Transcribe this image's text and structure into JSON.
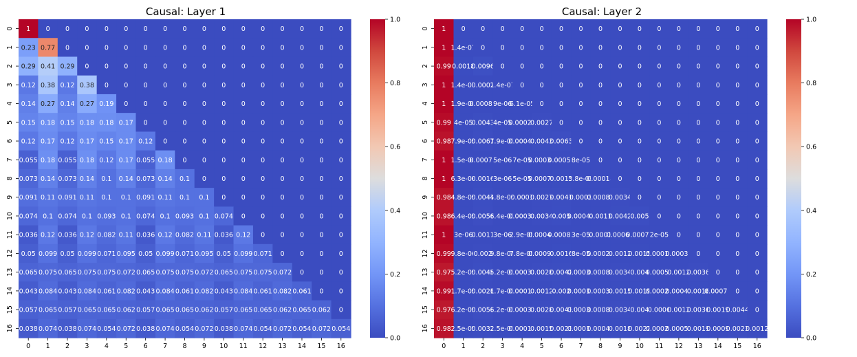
{
  "chart_data": [
    {
      "type": "heatmap",
      "title": "Causal: Layer 1",
      "x_ticks": [
        "0",
        "1",
        "2",
        "3",
        "4",
        "5",
        "6",
        "7",
        "8",
        "9",
        "10",
        "11",
        "12",
        "13",
        "14",
        "15",
        "16"
      ],
      "y_ticks": [
        "0",
        "1",
        "2",
        "3",
        "4",
        "5",
        "6",
        "7",
        "8",
        "9",
        "10",
        "11",
        "12",
        "13",
        "14",
        "15",
        "16"
      ],
      "colormap": "coolwarm",
      "vmin": 0.0,
      "vmax": 1.0,
      "colorbar_ticks": [
        "0.0",
        "0.2",
        "0.4",
        "0.6",
        "0.8",
        "1.0"
      ],
      "annotations": true,
      "values": [
        [
          "1",
          "0",
          "0",
          "0",
          "0",
          "0",
          "0",
          "0",
          "0",
          "0",
          "0",
          "0",
          "0",
          "0",
          "0",
          "0",
          "0"
        ],
        [
          "0.23",
          "0.77",
          "0",
          "0",
          "0",
          "0",
          "0",
          "0",
          "0",
          "0",
          "0",
          "0",
          "0",
          "0",
          "0",
          "0",
          "0"
        ],
        [
          "0.29",
          "0.41",
          "0.29",
          "0",
          "0",
          "0",
          "0",
          "0",
          "0",
          "0",
          "0",
          "0",
          "0",
          "0",
          "0",
          "0",
          "0"
        ],
        [
          "0.12",
          "0.38",
          "0.12",
          "0.38",
          "0",
          "0",
          "0",
          "0",
          "0",
          "0",
          "0",
          "0",
          "0",
          "0",
          "0",
          "0",
          "0"
        ],
        [
          "0.14",
          "0.27",
          "0.14",
          "0.27",
          "0.19",
          "0",
          "0",
          "0",
          "0",
          "0",
          "0",
          "0",
          "0",
          "0",
          "0",
          "0",
          "0"
        ],
        [
          "0.15",
          "0.18",
          "0.15",
          "0.18",
          "0.18",
          "0.17",
          "0",
          "0",
          "0",
          "0",
          "0",
          "0",
          "0",
          "0",
          "0",
          "0",
          "0"
        ],
        [
          "0.12",
          "0.17",
          "0.12",
          "0.17",
          "0.15",
          "0.17",
          "0.12",
          "0",
          "0",
          "0",
          "0",
          "0",
          "0",
          "0",
          "0",
          "0",
          "0"
        ],
        [
          "0.055",
          "0.18",
          "0.055",
          "0.18",
          "0.12",
          "0.17",
          "0.055",
          "0.18",
          "0",
          "0",
          "0",
          "0",
          "0",
          "0",
          "0",
          "0",
          "0"
        ],
        [
          "0.073",
          "0.14",
          "0.073",
          "0.14",
          "0.1",
          "0.14",
          "0.073",
          "0.14",
          "0.1",
          "0",
          "0",
          "0",
          "0",
          "0",
          "0",
          "0",
          "0"
        ],
        [
          "0.091",
          "0.11",
          "0.091",
          "0.11",
          "0.1",
          "0.1",
          "0.091",
          "0.11",
          "0.1",
          "0.1",
          "0",
          "0",
          "0",
          "0",
          "0",
          "0",
          "0"
        ],
        [
          "0.074",
          "0.1",
          "0.074",
          "0.1",
          "0.093",
          "0.1",
          "0.074",
          "0.1",
          "0.093",
          "0.1",
          "0.074",
          "0",
          "0",
          "0",
          "0",
          "0",
          "0"
        ],
        [
          "0.036",
          "0.12",
          "0.036",
          "0.12",
          "0.082",
          "0.11",
          "0.036",
          "0.12",
          "0.082",
          "0.11",
          "0.036",
          "0.12",
          "0",
          "0",
          "0",
          "0",
          "0"
        ],
        [
          "0.05",
          "0.099",
          "0.05",
          "0.099",
          "0.071",
          "0.095",
          "0.05",
          "0.099",
          "0.071",
          "0.095",
          "0.05",
          "0.099",
          "0.071",
          "0",
          "0",
          "0",
          "0"
        ],
        [
          "0.065",
          "0.075",
          "0.065",
          "0.075",
          "0.075",
          "0.072",
          "0.065",
          "0.075",
          "0.075",
          "0.072",
          "0.065",
          "0.075",
          "0.075",
          "0.072",
          "0",
          "0",
          "0"
        ],
        [
          "0.043",
          "0.084",
          "0.043",
          "0.084",
          "0.061",
          "0.082",
          "0.043",
          "0.084",
          "0.061",
          "0.082",
          "0.043",
          "0.084",
          "0.061",
          "0.082",
          "0.061",
          "0",
          "0"
        ],
        [
          "0.057",
          "0.065",
          "0.057",
          "0.065",
          "0.065",
          "0.062",
          "0.057",
          "0.065",
          "0.065",
          "0.062",
          "0.057",
          "0.065",
          "0.065",
          "0.062",
          "0.065",
          "0.062",
          "0"
        ],
        [
          "0.038",
          "0.074",
          "0.038",
          "0.074",
          "0.054",
          "0.072",
          "0.038",
          "0.074",
          "0.054",
          "0.072",
          "0.038",
          "0.074",
          "0.054",
          "0.072",
          "0.054",
          "0.072",
          "0.054"
        ]
      ]
    },
    {
      "type": "heatmap",
      "title": "Causal: Layer 2",
      "x_ticks": [
        "0",
        "1",
        "2",
        "3",
        "4",
        "5",
        "6",
        "7",
        "8",
        "9",
        "10",
        "11",
        "12",
        "13",
        "14",
        "15",
        "16"
      ],
      "y_ticks": [
        "0",
        "1",
        "2",
        "3",
        "4",
        "5",
        "6",
        "7",
        "8",
        "9",
        "10",
        "11",
        "12",
        "13",
        "14",
        "15",
        "16"
      ],
      "colormap": "coolwarm",
      "vmin": 0.0,
      "vmax": 1.0,
      "colorbar_ticks": [
        "0.0",
        "0.2",
        "0.4",
        "0.6",
        "0.8",
        "1.0"
      ],
      "annotations": true,
      "values": [
        [
          "1",
          "0",
          "0",
          "0",
          "0",
          "0",
          "0",
          "0",
          "0",
          "0",
          "0",
          "0",
          "0",
          "0",
          "0",
          "0",
          "0"
        ],
        [
          "1",
          "1.4e-07",
          "0",
          "0",
          "0",
          "0",
          "0",
          "0",
          "0",
          "0",
          "0",
          "0",
          "0",
          "0",
          "0",
          "0",
          "0"
        ],
        [
          "0.99",
          "0.0018",
          "0.0096",
          "0",
          "0",
          "0",
          "0",
          "0",
          "0",
          "0",
          "0",
          "0",
          "0",
          "0",
          "0",
          "0",
          "0"
        ],
        [
          "1",
          "1.4e-07",
          "0.0002",
          "1.4e-07",
          "0",
          "0",
          "0",
          "0",
          "0",
          "0",
          "0",
          "0",
          "0",
          "0",
          "0",
          "0",
          "0"
        ],
        [
          "1",
          "1.9e-06",
          "0.00082",
          "9e-06",
          "6.1e-05",
          "0",
          "0",
          "0",
          "0",
          "0",
          "0",
          "0",
          "0",
          "0",
          "0",
          "0",
          "0"
        ],
        [
          "0.99",
          "4e-05",
          "0.0043",
          "4e-05",
          "0.00027",
          "0.0027",
          "0",
          "0",
          "0",
          "0",
          "0",
          "0",
          "0",
          "0",
          "0",
          "0",
          "0"
        ],
        [
          "0.98",
          "7.9e-05",
          "0.0061",
          "7.9e-05",
          "0.00048",
          "0.0043",
          "0.0063",
          "0",
          "0",
          "0",
          "0",
          "0",
          "0",
          "0",
          "0",
          "0",
          "0"
        ],
        [
          "1",
          "1.5e-06",
          "0.00072",
          "5e-06",
          "7e-05",
          "0.00034",
          "0.00059",
          "8e-05",
          "0",
          "0",
          "0",
          "0",
          "0",
          "0",
          "0",
          "0",
          "0"
        ],
        [
          "1",
          "6.3e-06",
          "0.0016",
          "3e-06",
          "5e-05",
          "0.00079",
          "0.0015",
          "3.8e-05",
          "0.00018",
          "0",
          "0",
          "0",
          "0",
          "0",
          "0",
          "0",
          "0"
        ],
        [
          "0.98",
          "4.8e-05",
          "0.0047",
          "4.8e-05",
          "0.0003",
          "0.0027",
          "0.0041",
          "0.0003",
          "0.00082",
          "0.0034",
          "0",
          "0",
          "0",
          "0",
          "0",
          "0",
          "0"
        ],
        [
          "0.98",
          "6.4e-05",
          "0.0058",
          "6.4e-05",
          "0.00039",
          "0.0034",
          "0.005",
          "0.00041",
          "0.0011",
          "0.0042",
          "0.005",
          "0",
          "0",
          "0",
          "0",
          "0",
          "0"
        ],
        [
          "1",
          "3e-06",
          "0.0011",
          "3e-06",
          "2.9e-05",
          "0.00048",
          "0.00082",
          "3e-05",
          "0.0001",
          "0.00061",
          "0.00077",
          "2e-05",
          "0",
          "0",
          "0",
          "0",
          "0"
        ],
        [
          "0.99",
          "9.8e-06",
          "0.002",
          "9.8e-06",
          "7.8e-05",
          "0.00098",
          "0.0016",
          "8e-05",
          "0.00024",
          "0.0012",
          "0.0015",
          "0.00015",
          "0.00037",
          "0",
          "0",
          "0",
          "0"
        ],
        [
          "0.97",
          "5.2e-05",
          "0.0048",
          "5.2e-05",
          "0.00031",
          "0.0028",
          "0.0042",
          "0.00032",
          "0.00084",
          "0.0034",
          "0.004",
          "0.00057",
          "0.0012",
          "0.0036",
          "0",
          "0",
          "0"
        ],
        [
          "0.99",
          "1.7e-05",
          "0.0026",
          "1.7e-05",
          "0.00012",
          "0.0012",
          "0.002",
          "0.00012",
          "0.00033",
          "0.0015",
          "0.0019",
          "0.00021",
          "0.00048",
          "0.0016",
          "0.00077",
          "0",
          "0"
        ],
        [
          "0.97",
          "6.2e-05",
          "0.0058",
          "6.2e-05",
          "0.00035",
          "0.0028",
          "0.0043",
          "0.00035",
          "0.00089",
          "0.0034",
          "0.004",
          "0.0006",
          "0.0012",
          "0.0036",
          "0.0019",
          "0.0044",
          "0"
        ],
        [
          "0.98",
          "2.5e-05",
          "0.0032",
          "2.5e-05",
          "0.00016",
          "0.0015",
          "0.0023",
          "0.00015",
          "0.00041",
          "0.0018",
          "0.0022",
          "0.00026",
          "0.00059",
          "0.0019",
          "0.0009",
          "0.0023",
          "0.0012"
        ]
      ]
    }
  ]
}
